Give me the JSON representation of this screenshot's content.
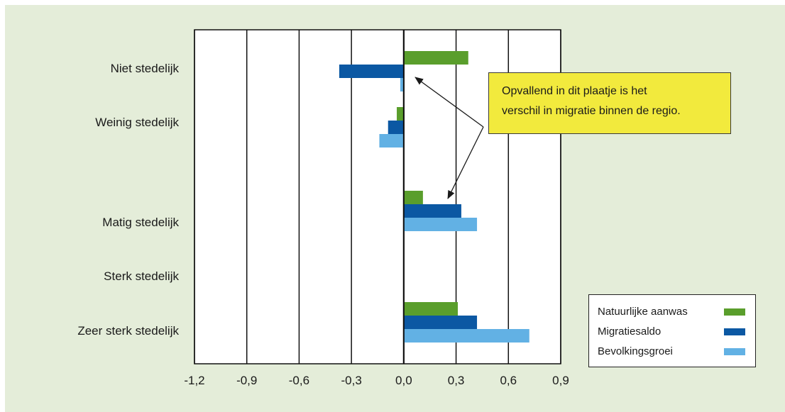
{
  "chart_data": {
    "type": "bar",
    "orientation": "horizontal",
    "categories": [
      "Niet stedelijk",
      "Weinig stedelijk",
      "Matig stedelijk",
      "Sterk stedelijk",
      "Zeer sterk stedelijk"
    ],
    "series": [
      {
        "name": "Natuurlijke aanwas",
        "color": "#5a9e2c",
        "values": [
          0.37,
          -0.04,
          0.11,
          null,
          0.31
        ]
      },
      {
        "name": "Migratiesaldo",
        "color": "#0b58a3",
        "values": [
          -0.37,
          -0.09,
          0.33,
          null,
          0.42
        ]
      },
      {
        "name": "Bevolkingsgroei",
        "color": "#62b1e4",
        "values": [
          -0.02,
          -0.14,
          0.42,
          null,
          0.72
        ]
      }
    ],
    "xlim": [
      -1.2,
      0.9
    ],
    "xticks": [
      -1.2,
      -0.9,
      -0.6,
      -0.3,
      0.0,
      0.3,
      0.6,
      0.9
    ],
    "xtick_labels": [
      "-1,2",
      "-0,9",
      "-0,6",
      "-0,3",
      "0,0",
      "0,3",
      "0,6",
      "0,9"
    ],
    "grid": "vertical",
    "legend_position": "bottom-right",
    "background_color": "#e4edd9"
  },
  "annotation": {
    "line1": "Opvallend in dit plaatje is het",
    "line2": "verschil in migratie binnen de regio.",
    "color": "#f2ea3d"
  },
  "legend": {
    "items": [
      {
        "label": "Natuurlijke aanwas",
        "color": "#5a9e2c"
      },
      {
        "label": "Migratiesaldo",
        "color": "#0b58a3"
      },
      {
        "label": "Bevolkingsgroei",
        "color": "#62b1e4"
      }
    ]
  }
}
